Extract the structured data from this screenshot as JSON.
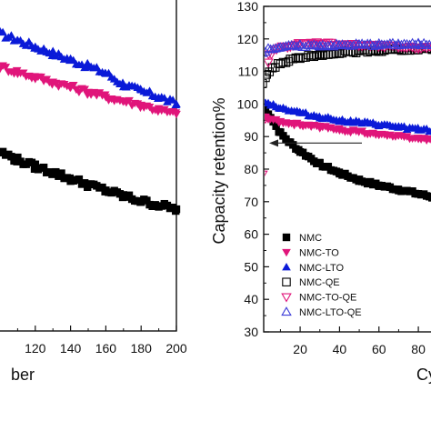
{
  "chart_data": [
    {
      "type": "scatter",
      "panel": "left (cropped)",
      "xlabel": "ber",
      "ylabel": "",
      "xlim": [
        100,
        200
      ],
      "x_ticks": [
        "120",
        "140",
        "160",
        "180",
        "200"
      ],
      "y_ticks": [],
      "series": [
        {
          "color": "#0a1ad8",
          "marker": "triangle-up",
          "x": [
            100,
            110,
            120,
            130,
            140,
            150,
            160,
            170,
            180,
            190,
            200
          ],
          "y": [
            97,
            96.2,
            95.4,
            94.6,
            93.8,
            93,
            92.2,
            90.8,
            90,
            89.3,
            88.4
          ]
        },
        {
          "color": "#e0157a",
          "marker": "triangle-down",
          "x": [
            100,
            110,
            120,
            130,
            140,
            150,
            160,
            170,
            180,
            190,
            200
          ],
          "y": [
            93,
            92.3,
            91.7,
            91.1,
            90.5,
            89.9,
            89.3,
            88.8,
            88.3,
            87.7,
            87.2
          ]
        },
        {
          "color": "#000000",
          "marker": "square",
          "x": [
            100,
            110,
            120,
            130,
            140,
            150,
            160,
            170,
            180,
            190,
            200
          ],
          "y": [
            82.6,
            81.6,
            80.8,
            80.1,
            79.3,
            78.6,
            77.9,
            77.2,
            76.6,
            76.1,
            75.6
          ]
        }
      ]
    },
    {
      "type": "scatter",
      "panel": "right (cropped)",
      "xlabel": "Cy",
      "ylabel": "Capacity retention%",
      "xlim": [
        0,
        90
      ],
      "ylim": [
        30,
        130
      ],
      "x_ticks": [
        "20",
        "40",
        "60",
        "80"
      ],
      "y_ticks": [
        "30",
        "40",
        "50",
        "60",
        "70",
        "80",
        "90",
        "100",
        "110",
        "120",
        "130"
      ],
      "legend_position": "lower-left",
      "legend": [
        "NMC",
        "NMC-TO",
        "NMC-LTO",
        "NMC-QE",
        "NMC-TO-QE",
        "NMC-LTO-QE"
      ],
      "annotation": "arrow pointing left at ~88%",
      "series": [
        {
          "name": "NMC",
          "color": "#000000",
          "marker": "square-filled",
          "x": [
            1,
            5,
            10,
            15,
            20,
            30,
            40,
            50,
            60,
            70,
            80,
            90
          ],
          "y": [
            100,
            96,
            91,
            88,
            85.5,
            81.5,
            78.8,
            76.6,
            75,
            73.8,
            72.4,
            71
          ]
        },
        {
          "name": "NMC-TO",
          "color": "#e0157a",
          "marker": "triangle-down-filled",
          "x": [
            1,
            5,
            10,
            20,
            30,
            40,
            50,
            60,
            70,
            80,
            90
          ],
          "y": [
            96,
            95.3,
            94.6,
            93.6,
            93,
            92.1,
            91.5,
            90.8,
            90,
            89.4,
            88.8
          ]
        },
        {
          "name": "NMC-LTO",
          "color": "#0a1ad8",
          "marker": "triangle-up-filled",
          "x": [
            1,
            5,
            10,
            20,
            30,
            40,
            50,
            60,
            70,
            80,
            90
          ],
          "y": [
            101,
            100,
            98.8,
            97.3,
            96,
            95,
            94.3,
            93.6,
            92.9,
            92.2,
            91.5
          ]
        },
        {
          "name": "NMC-QE",
          "color": "#000000",
          "marker": "square-open",
          "x": [
            1,
            3,
            6,
            10,
            15,
            20,
            30,
            40,
            50,
            60,
            70,
            80,
            90
          ],
          "y": [
            106,
            109,
            111,
            112.5,
            113.5,
            114.3,
            115.2,
            115.8,
            116.2,
            116.5,
            116.7,
            116.9,
            117
          ]
        },
        {
          "name": "NMC-TO-QE",
          "color": "#e0157a",
          "marker": "triangle-down-open",
          "x": [
            1,
            4,
            8,
            15,
            20,
            30,
            40,
            50,
            60,
            70,
            80,
            90
          ],
          "y": [
            78,
            115,
            117,
            118,
            118.5,
            118.8,
            118.4,
            118,
            117.8,
            117.6,
            117.4,
            117.2
          ]
        },
        {
          "name": "NMC-LTO-QE",
          "color": "#3b3bd8",
          "marker": "triangle-up-open",
          "x": [
            1,
            5,
            10,
            20,
            30,
            40,
            50,
            60,
            70,
            80,
            90
          ],
          "y": [
            116,
            117,
            117.5,
            117.8,
            118,
            118,
            118.2,
            118.2,
            118.3,
            118.3,
            118.4
          ]
        }
      ]
    }
  ]
}
